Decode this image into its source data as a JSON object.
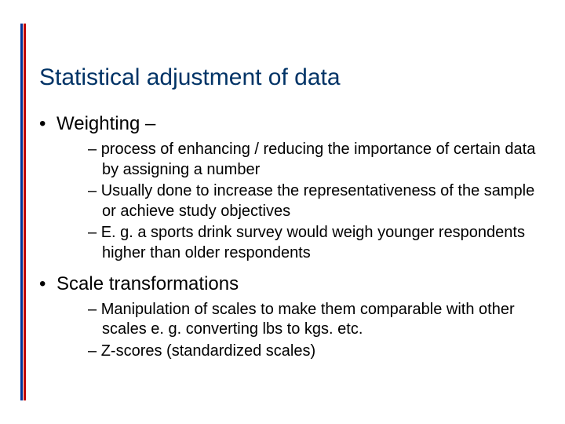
{
  "colors": {
    "accent_blue": "#003399",
    "accent_red": "#c00000",
    "title_color": "#003366",
    "text_color": "#000000",
    "background": "#ffffff"
  },
  "typography": {
    "title_fontsize": 30,
    "bullet_fontsize": 24,
    "sub_fontsize": 20,
    "font_family": "Verdana"
  },
  "title": "Statistical adjustment of data",
  "bullets": [
    {
      "label": "Weighting –",
      "subs": [
        "process of enhancing / reducing the importance of certain data by assigning a number",
        "Usually done to increase the representativeness of the sample or achieve study objectives",
        "E. g. a sports drink survey would weigh younger respondents higher than older respondents"
      ]
    },
    {
      "label": "Scale transformations",
      "subs": [
        "Manipulation of scales to make them comparable with other scales e. g. converting lbs to kgs. etc.",
        "Z-scores (standardized scales)"
      ]
    }
  ]
}
